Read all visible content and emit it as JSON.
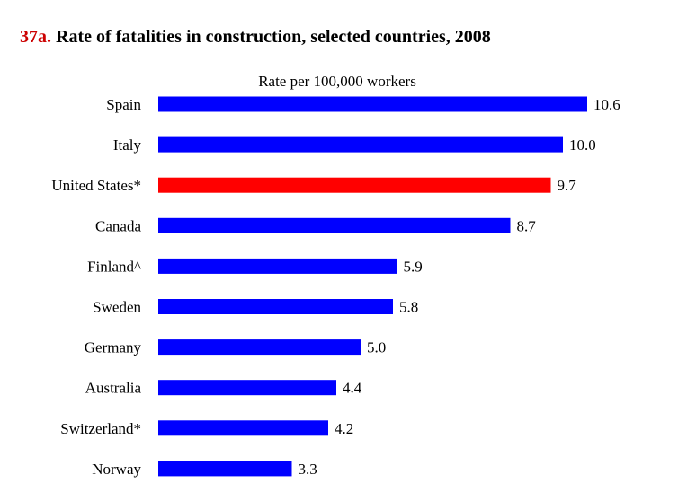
{
  "title": {
    "number": "37a.",
    "text": "Rate of fatalities in construction, selected countries, 2008"
  },
  "colors": {
    "title_number": "#cc0000",
    "bar_default": "#0000ff",
    "bar_highlight": "#ff0000"
  },
  "chart_data": {
    "type": "bar",
    "orientation": "horizontal",
    "title": "Rate of fatalities in construction, selected countries, 2008",
    "xlabel": "Rate per 100,000 workers",
    "ylabel": "",
    "categories": [
      "Spain",
      "Italy",
      "United States*",
      "Canada",
      "Finland^",
      "Sweden",
      "Germany",
      "Australia",
      "Switzerland*",
      "Norway"
    ],
    "values": [
      10.6,
      10.0,
      9.7,
      8.7,
      5.9,
      5.8,
      5.0,
      4.4,
      4.2,
      3.3
    ],
    "data_labels": [
      "10.6",
      "10.0",
      "9.7",
      "8.7",
      "5.9",
      "5.8",
      "5.0",
      "4.4",
      "4.2",
      "3.3"
    ],
    "highlight": "United States*",
    "xlim": [
      0,
      10.6
    ],
    "grid": false,
    "legend": "none"
  }
}
